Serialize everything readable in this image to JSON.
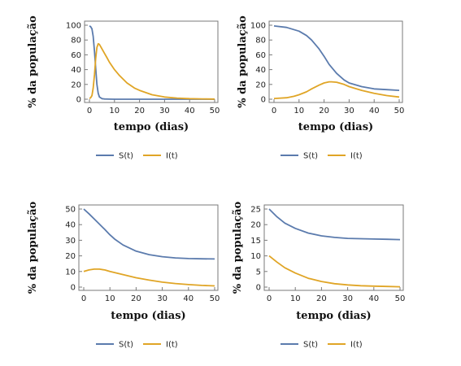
{
  "legend": {
    "s_label": "S(t)",
    "i_label": "I(t)"
  },
  "colors": {
    "s": "#5b7bad",
    "i": "#e0a526"
  },
  "chart_data": [
    {
      "type": "line",
      "xlabel": "tempo (dias)",
      "ylabel": "% da população",
      "xlim": [
        0,
        50
      ],
      "ylim": [
        0,
        100
      ],
      "xticks": [
        0,
        10,
        20,
        30,
        40,
        50
      ],
      "yticks": [
        0,
        20,
        40,
        60,
        80,
        100
      ],
      "grid": false,
      "legend": "bottom",
      "series": [
        {
          "name": "S(t)",
          "x": [
            0,
            0.5,
            1,
            1.5,
            2,
            2.5,
            3,
            3.5,
            4,
            5,
            6,
            8,
            10,
            20,
            30,
            40,
            50
          ],
          "values": [
            99,
            98,
            95,
            85,
            65,
            42,
            20,
            8,
            3,
            0.8,
            0.3,
            0.1,
            0,
            0,
            0,
            0,
            0
          ]
        },
        {
          "name": "I(t)",
          "x": [
            0,
            0.5,
            1,
            1.5,
            2,
            2.5,
            3,
            3.5,
            4,
            4.5,
            5,
            6,
            7,
            8,
            10,
            12,
            15,
            18,
            20,
            25,
            30,
            35,
            40,
            45,
            50
          ],
          "values": [
            1,
            2,
            5,
            15,
            33,
            55,
            70,
            75,
            74,
            71,
            68,
            62,
            56,
            50,
            40,
            32,
            22,
            15,
            12,
            6,
            3,
            1.5,
            0.8,
            0.4,
            0.2
          ]
        }
      ]
    },
    {
      "type": "line",
      "xlabel": "tempo (dias)",
      "ylabel": "% da população",
      "xlim": [
        0,
        50
      ],
      "ylim": [
        0,
        100
      ],
      "xticks": [
        0,
        10,
        20,
        30,
        40,
        50
      ],
      "yticks": [
        0,
        20,
        40,
        60,
        80,
        100
      ],
      "grid": false,
      "legend": "bottom",
      "series": [
        {
          "name": "S(t)",
          "x": [
            0,
            5,
            10,
            13,
            15,
            18,
            20,
            22,
            25,
            28,
            30,
            35,
            40,
            45,
            50
          ],
          "values": [
            99,
            97,
            92,
            86,
            80,
            68,
            58,
            47,
            35,
            26,
            22,
            17,
            14,
            13,
            12
          ]
        },
        {
          "name": "I(t)",
          "x": [
            0,
            5,
            8,
            10,
            13,
            15,
            18,
            20,
            22,
            23,
            25,
            28,
            30,
            35,
            40,
            45,
            50
          ],
          "values": [
            1,
            2,
            4,
            6,
            10,
            14,
            19,
            22,
            23.5,
            23.5,
            23,
            20,
            17,
            12,
            8,
            5,
            3
          ]
        }
      ]
    },
    {
      "type": "line",
      "xlabel": "tempo (dias)",
      "ylabel": "% da população",
      "xlim": [
        0,
        50
      ],
      "ylim": [
        0,
        50
      ],
      "xticks": [
        0,
        10,
        20,
        30,
        40,
        50
      ],
      "yticks": [
        0,
        10,
        20,
        30,
        40,
        50
      ],
      "grid": false,
      "legend": "bottom",
      "series": [
        {
          "name": "S(t)",
          "x": [
            0,
            2,
            5,
            8,
            10,
            12,
            15,
            20,
            25,
            30,
            35,
            40,
            45,
            50
          ],
          "values": [
            50,
            47,
            42,
            37,
            33.5,
            30.5,
            27,
            23,
            20.8,
            19.5,
            18.7,
            18.3,
            18.1,
            18
          ]
        },
        {
          "name": "I(t)",
          "x": [
            0,
            2,
            4,
            6,
            8,
            10,
            15,
            20,
            25,
            30,
            35,
            40,
            45,
            50
          ],
          "values": [
            10,
            11,
            11.5,
            11.5,
            11,
            10,
            8,
            6,
            4.5,
            3.2,
            2.3,
            1.6,
            1.1,
            0.8
          ]
        }
      ]
    },
    {
      "type": "line",
      "xlabel": "tempo (dias)",
      "ylabel": "% da população",
      "xlim": [
        0,
        50
      ],
      "ylim": [
        0,
        25
      ],
      "xticks": [
        0,
        10,
        20,
        30,
        40,
        50
      ],
      "yticks": [
        0,
        5,
        10,
        15,
        20,
        25
      ],
      "grid": false,
      "legend": "bottom",
      "series": [
        {
          "name": "S(t)",
          "x": [
            0,
            3,
            6,
            10,
            15,
            20,
            25,
            30,
            35,
            40,
            45,
            50
          ],
          "values": [
            25,
            22.5,
            20.5,
            18.8,
            17.3,
            16.4,
            15.9,
            15.6,
            15.5,
            15.4,
            15.3,
            15.2
          ]
        },
        {
          "name": "I(t)",
          "x": [
            0,
            3,
            6,
            10,
            15,
            20,
            25,
            30,
            35,
            40,
            45,
            50
          ],
          "values": [
            10,
            8,
            6.2,
            4.5,
            2.8,
            1.8,
            1.1,
            0.7,
            0.45,
            0.3,
            0.2,
            0.1
          ]
        }
      ]
    }
  ]
}
